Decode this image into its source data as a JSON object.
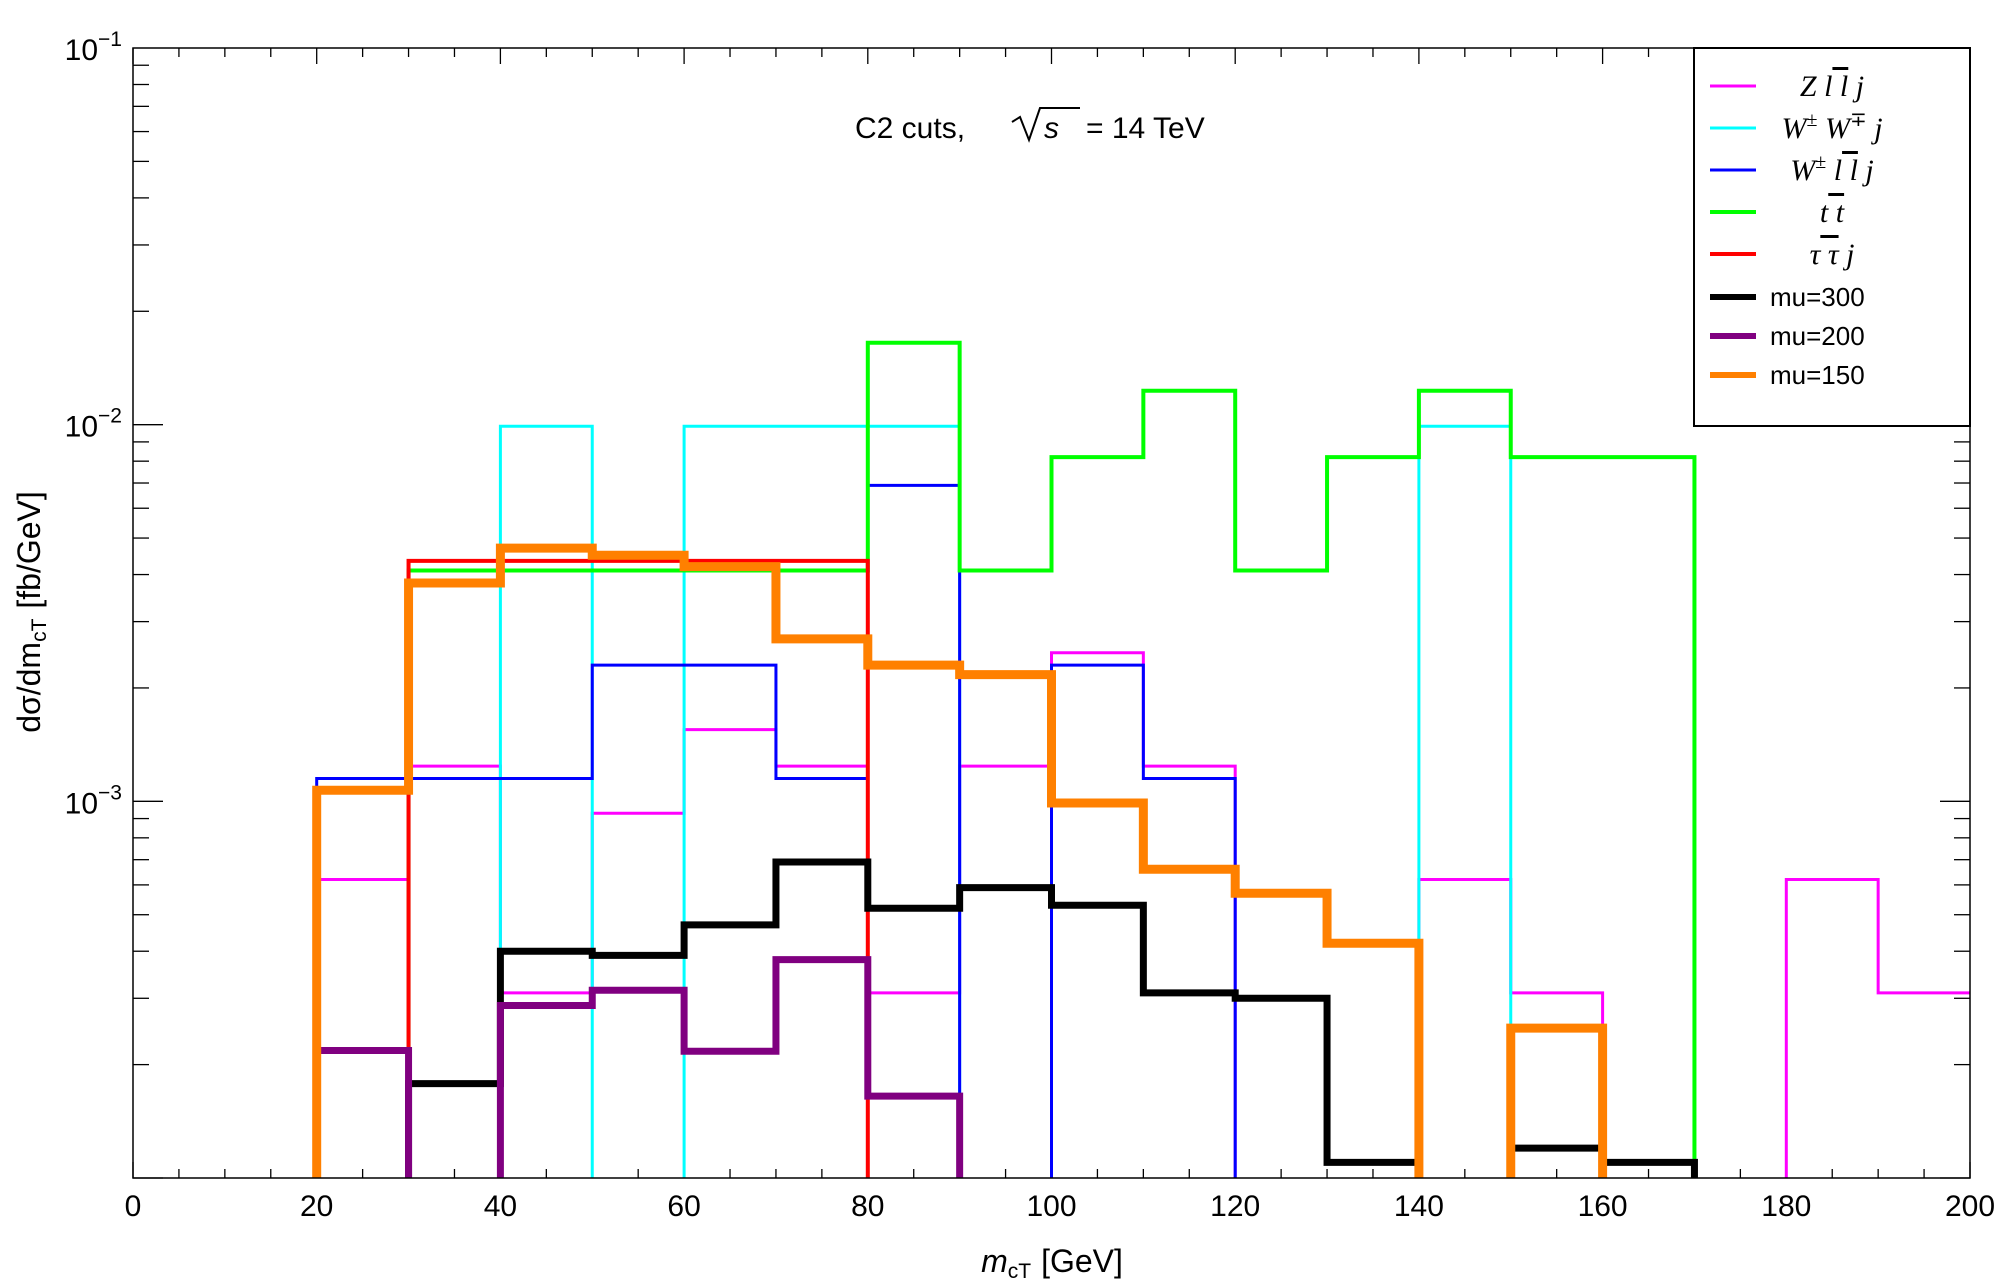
{
  "chart_data": {
    "type": "line",
    "step": true,
    "annotation": {
      "prefix": "C2 cuts,",
      "sqrt_arg": "s",
      "suffix": "= 14 TeV"
    },
    "xlabel": {
      "main": "m",
      "sub": "cT",
      "unit": "[GeV]"
    },
    "ylabel": {
      "main": "dσ/dm",
      "sub": "cT",
      "unit": "[fb/GeV]"
    },
    "xlim": [
      0,
      200
    ],
    "ylim": [
      0.0001,
      0.1
    ],
    "yscale": "log",
    "x_ticks": [
      {
        "value": 0,
        "label": "0"
      },
      {
        "value": 20,
        "label": "20"
      },
      {
        "value": 40,
        "label": "40"
      },
      {
        "value": 60,
        "label": "60"
      },
      {
        "value": 80,
        "label": "80"
      },
      {
        "value": 100,
        "label": "100"
      },
      {
        "value": 120,
        "label": "120"
      },
      {
        "value": 140,
        "label": "140"
      },
      {
        "value": 160,
        "label": "160"
      },
      {
        "value": 180,
        "label": "180"
      },
      {
        "value": 200,
        "label": "200"
      }
    ],
    "y_ticks": [
      {
        "value": 0.1,
        "base": "10",
        "exp": "−1"
      },
      {
        "value": 0.01,
        "base": "10",
        "exp": "−2"
      },
      {
        "value": 0.001,
        "base": "10",
        "exp": "−3"
      }
    ],
    "legend_position": "top-right",
    "bin_edges": [
      0,
      10,
      20,
      30,
      40,
      50,
      60,
      70,
      80,
      90,
      100,
      110,
      120,
      130,
      140,
      150,
      160,
      170,
      180,
      190,
      200
    ],
    "series": [
      {
        "name": "Z l l̄ j",
        "legend": {
          "parts": [
            "Z",
            " l",
            " l",
            " j"
          ],
          "bar_on": 2
        },
        "color": "#ff00ff",
        "width": 3,
        "values": [
          0,
          0,
          0.00062,
          0.00124,
          0.00031,
          0.00093,
          0.00155,
          0.00124,
          0.00031,
          0.00124,
          0.00248,
          0.00124,
          0,
          0,
          0.00062,
          0.00031,
          0,
          0,
          0.00062,
          0.00031
        ]
      },
      {
        "name": "W± W∓ j",
        "legend": {
          "parts": [
            "W",
            "±",
            " W",
            "∓",
            " j"
          ]
        },
        "color": "#00ffff",
        "width": 3,
        "values": [
          0,
          0,
          0,
          0,
          0.0099,
          0,
          0.0099,
          0.0099,
          0.0099,
          0,
          0,
          0,
          0,
          0,
          0.0099,
          0,
          0,
          0,
          0,
          0
        ]
      },
      {
        "name": "W± l l̄ j",
        "legend": {
          "parts": [
            "W",
            "±",
            " l",
            " l",
            " j"
          ],
          "bar_on": 3
        },
        "color": "#0000ff",
        "width": 3,
        "values": [
          0,
          0,
          0.00115,
          0.00115,
          0.00115,
          0.0023,
          0.0023,
          0.00115,
          0.0069,
          0,
          0.0023,
          0.00115,
          0,
          0,
          0,
          0,
          0,
          0,
          0,
          0
        ]
      },
      {
        "name": "t t̄",
        "legend": {
          "parts": [
            "t",
            " t"
          ],
          "bar_on": 1
        },
        "color": "#00ff00",
        "width": 4,
        "values": [
          0,
          0,
          0,
          0.0041,
          0.0041,
          0.0041,
          0.0041,
          0.0041,
          0.0165,
          0.0041,
          0.0082,
          0.0123,
          0.0041,
          0.0082,
          0.0123,
          0.0082,
          0.0082,
          0,
          0,
          0
        ]
      },
      {
        "name": "τ τ̄ j",
        "legend": {
          "parts": [
            "τ",
            " τ",
            " j"
          ],
          "bar_on": 1
        },
        "color": "#ff0000",
        "width": 4,
        "values": [
          0,
          0,
          0,
          0.00435,
          0.00435,
          0.00435,
          0.00435,
          0.00435,
          0,
          0,
          0,
          0,
          0,
          0,
          0,
          0,
          0,
          0,
          0,
          0
        ]
      },
      {
        "name": "mu=300",
        "legend": {
          "text": "mu=300"
        },
        "color": "#000000",
        "width": 7,
        "values": [
          0,
          0,
          0,
          0.000178,
          0.0004,
          0.00039,
          0.00047,
          0.00069,
          0.00052,
          0.00059,
          0.00053,
          0.00031,
          0.0003,
          0.00011,
          0,
          0.00012,
          0.00011,
          0,
          0,
          0
        ]
      },
      {
        "name": "mu=200",
        "legend": {
          "text": "mu=200"
        },
        "color": "#800080",
        "width": 7,
        "values": [
          0,
          0,
          0.000218,
          0,
          0.000287,
          0.000315,
          0.000217,
          0.00038,
          0.000165,
          0,
          0,
          0,
          0,
          0,
          0,
          0,
          0,
          0,
          0,
          0
        ]
      },
      {
        "name": "mu=150",
        "legend": {
          "text": "mu=150"
        },
        "color": "#ff8000",
        "width": 9,
        "values": [
          0,
          0,
          0.00107,
          0.0038,
          0.0047,
          0.0045,
          0.0042,
          0.0027,
          0.0023,
          0.00217,
          0.00099,
          0.00066,
          0.00057,
          0.00042,
          0,
          0.00025,
          0,
          0,
          0,
          0
        ]
      }
    ]
  }
}
